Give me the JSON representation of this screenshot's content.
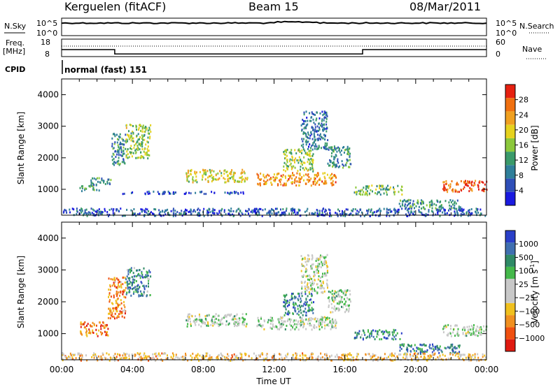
{
  "header": {
    "station": "Kerguelen (fitACF)",
    "beam": "Beam 15",
    "date": "08/Mar/2011"
  },
  "strips": {
    "nsky_label": "N.Sky",
    "nsky_ticks": [
      "10^5",
      "10^0"
    ],
    "nsearch_label": "N.Search",
    "nsearch_ticks": [
      "10^5",
      "10^0"
    ],
    "freq_label": "Freq.",
    "freq_unit": "[MHz]",
    "freq_ticks": [
      "18",
      "8"
    ],
    "nave_label": "Nave",
    "nave_ticks": [
      "60",
      "0"
    ],
    "cpid_label": "CPID",
    "cpid_value": "normal (fast) 151",
    "freq_segments": [
      {
        "start_h": 0.0,
        "end_h": 3.0,
        "freq_mhz": 12.0
      },
      {
        "start_h": 3.0,
        "end_h": 17.0,
        "freq_mhz": 9.5
      },
      {
        "start_h": 17.0,
        "end_h": 24.0,
        "freq_mhz": 12.0
      }
    ]
  },
  "chart_data": [
    {
      "type": "heatmap",
      "name": "Power",
      "ylabel": "Slant Range [km]",
      "yticks": [
        "1000",
        "2000",
        "3000",
        "4000"
      ],
      "ylim": [
        180,
        4500
      ],
      "xlim": [
        0,
        24
      ],
      "colorbar_label": "Power [dB]",
      "colorbar_ticks": [
        "4",
        "8",
        "12",
        "16",
        "20",
        "24",
        "28"
      ],
      "colorscale": [
        "#1a1ae0",
        "#2f4fb8",
        "#2f7f9a",
        "#3a9a6a",
        "#8cc83c",
        "#e6d21e",
        "#f0a020",
        "#f07010",
        "#e62010"
      ],
      "echo_regions": [
        {
          "t0": 1.0,
          "t1": 2.1,
          "r0": 950,
          "r1": 1150,
          "level": 0.4
        },
        {
          "t0": 1.6,
          "t1": 2.8,
          "r0": 1150,
          "r1": 1400,
          "level": 0.3
        },
        {
          "t0": 2.8,
          "t1": 3.6,
          "r0": 1800,
          "r1": 2800,
          "level": 0.3
        },
        {
          "t0": 3.6,
          "t1": 5.0,
          "r0": 2000,
          "r1": 3100,
          "level": 0.5
        },
        {
          "t0": 3.0,
          "t1": 10.5,
          "r0": 880,
          "r1": 960,
          "level": 0.15
        },
        {
          "t0": 7.0,
          "t1": 10.5,
          "r0": 1250,
          "r1": 1650,
          "level": 0.6
        },
        {
          "t0": 11.0,
          "t1": 15.5,
          "r0": 1150,
          "r1": 1550,
          "level": 0.75
        },
        {
          "t0": 12.5,
          "t1": 14.2,
          "r0": 1600,
          "r1": 2300,
          "level": 0.5
        },
        {
          "t0": 13.5,
          "t1": 15.0,
          "r0": 2300,
          "r1": 3500,
          "level": 0.25
        },
        {
          "t0": 15.0,
          "t1": 16.3,
          "r0": 1700,
          "r1": 2400,
          "level": 0.35
        },
        {
          "t0": 16.5,
          "t1": 19.2,
          "r0": 850,
          "r1": 1150,
          "level": 0.45
        },
        {
          "t0": 19.0,
          "t1": 22.5,
          "r0": 400,
          "r1": 700,
          "level": 0.35
        },
        {
          "t0": 21.5,
          "t1": 24.0,
          "r0": 950,
          "r1": 1300,
          "level": 0.85
        },
        {
          "t0": 0.0,
          "t1": 24.0,
          "r0": 180,
          "r1": 420,
          "level": 0.2
        }
      ]
    },
    {
      "type": "heatmap",
      "name": "Velocity",
      "ylabel": "Slant Range [km]",
      "yticks": [
        "1000",
        "2000",
        "3000",
        "4000"
      ],
      "ylim": [
        180,
        4500
      ],
      "xlim": [
        0,
        24
      ],
      "xlabel": "Time UT",
      "xticks": [
        "00:00",
        "04:00",
        "08:00",
        "12:00",
        "16:00",
        "20:00",
        "00:00"
      ],
      "colorbar_label": "Velocity [m s",
      "colorbar_label_sup": "-1",
      "colorbar_label_end": "]",
      "colorbar_ticks": [
        "1000",
        "500",
        "100",
        "25",
        "−25",
        "−100",
        "−500",
        "−1000"
      ],
      "colorscale": [
        "#2a3fc8",
        "#3f6fb0",
        "#2f8a66",
        "#44b84a",
        "#c8c8c8",
        "#c8c8c8",
        "#f0c01e",
        "#f09020",
        "#f05010",
        "#e01a10"
      ],
      "echo_regions": [
        {
          "t0": 1.0,
          "t1": 2.6,
          "r0": 950,
          "r1": 1400,
          "level": 0.8
        },
        {
          "t0": 2.6,
          "t1": 3.6,
          "r0": 1500,
          "r1": 2800,
          "level": 0.75
        },
        {
          "t0": 3.6,
          "t1": 5.0,
          "r0": 2200,
          "r1": 3100,
          "level": 0.25
        },
        {
          "t0": 7.0,
          "t1": 10.5,
          "r0": 1250,
          "r1": 1650,
          "level": 0.45
        },
        {
          "t0": 11.0,
          "t1": 15.5,
          "r0": 1150,
          "r1": 1550,
          "level": 0.45
        },
        {
          "t0": 12.5,
          "t1": 14.2,
          "r0": 1600,
          "r1": 2300,
          "level": 0.2
        },
        {
          "t0": 13.5,
          "t1": 15.0,
          "r0": 2300,
          "r1": 3500,
          "level": 0.5
        },
        {
          "t0": 15.0,
          "t1": 16.3,
          "r0": 1700,
          "r1": 2400,
          "level": 0.45
        },
        {
          "t0": 16.5,
          "t1": 19.2,
          "r0": 850,
          "r1": 1150,
          "level": 0.25
        },
        {
          "t0": 19.0,
          "t1": 22.5,
          "r0": 400,
          "r1": 700,
          "level": 0.2
        },
        {
          "t0": 21.5,
          "t1": 24.0,
          "r0": 950,
          "r1": 1300,
          "level": 0.45
        },
        {
          "t0": 0.0,
          "t1": 24.0,
          "r0": 180,
          "r1": 420,
          "level": 0.65
        }
      ]
    }
  ]
}
